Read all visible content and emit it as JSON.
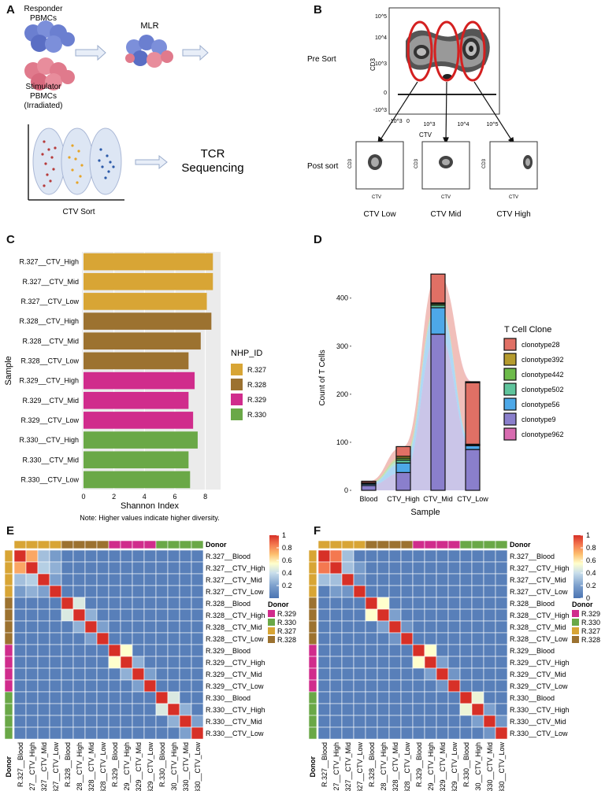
{
  "panels": {
    "a": "A",
    "b": "B",
    "c": "C",
    "d": "D",
    "e": "E",
    "f": "F"
  },
  "panel_a": {
    "responder": [
      "Responder",
      "PBMCs"
    ],
    "stimulator": [
      "Stimulator",
      "PBMCs",
      "(Irradiated)"
    ],
    "mlr": "MLR",
    "tcr": [
      "TCR",
      "Sequencing"
    ],
    "ctv_sort": "CTV Sort"
  },
  "panel_b": {
    "pre_sort": "Pre Sort",
    "post_sort": "Post sort",
    "main_ylabel": "CD3",
    "main_xlabel": "CTV",
    "yticks": [
      "10^5",
      "10^4",
      "10^3",
      "0",
      "-10^3"
    ],
    "xticks": [
      "-10^3",
      "0",
      "10^3",
      "10^4",
      "10^5"
    ],
    "mini_ylabel": "CD3",
    "mini_xlabel": "CTV",
    "captions": [
      "CTV Low",
      "CTV Mid",
      "CTV High"
    ]
  },
  "chart_data": [
    {
      "type": "bar",
      "orientation": "horizontal",
      "categories": [
        "R.327__CTV_High",
        "R.327__CTV_Mid",
        "R.327__CTV_Low",
        "R.328__CTV_High",
        "R.328__CTV_Mid",
        "R.328__CTV_Low",
        "R.329__CTV_High",
        "R.329__CTV_Mid",
        "R.329__CTV_Low",
        "R.330__CTV_High",
        "R.330__CTV_Mid",
        "R.330__CTV_Low"
      ],
      "values": [
        8.5,
        8.5,
        8.1,
        8.4,
        7.7,
        6.9,
        7.3,
        6.9,
        7.2,
        7.5,
        6.9,
        7.0
      ],
      "groups": [
        "R.327",
        "R.327",
        "R.327",
        "R.328",
        "R.328",
        "R.328",
        "R.329",
        "R.329",
        "R.329",
        "R.330",
        "R.330",
        "R.330"
      ],
      "xlabel": "Shannon Index",
      "ylabel": "Sample",
      "xticks": [
        0,
        2,
        4,
        6,
        8
      ],
      "xlim": [
        0,
        8.9
      ],
      "note": "Note: Higher values indicate higher diversity.",
      "legend_title": "NHP_ID",
      "legend": [
        {
          "label": "R.327",
          "color": "#D8A535"
        },
        {
          "label": "R.328",
          "color": "#9C7230"
        },
        {
          "label": "R.329",
          "color": "#D02C8C"
        },
        {
          "label": "R.330",
          "color": "#6AA847"
        }
      ]
    },
    {
      "type": "bar",
      "stacked": true,
      "categories": [
        "Blood",
        "CTV_High",
        "CTV_Mid",
        "CTV_Low"
      ],
      "xlabel": "Sample",
      "ylabel": "Count of T Cells",
      "yticks": [
        0,
        100,
        200,
        300,
        400
      ],
      "ylim": [
        0,
        470
      ],
      "legend_title": "T Cell Clone",
      "series": [
        {
          "name": "clonotype9",
          "color": "#8A7FCC",
          "values": [
            10,
            37,
            325,
            85
          ]
        },
        {
          "name": "clonotype56",
          "color": "#4DA8E8",
          "values": [
            3,
            20,
            55,
            8
          ]
        },
        {
          "name": "clonotype502",
          "color": "#5FC49C",
          "values": [
            1,
            6,
            5,
            1
          ]
        },
        {
          "name": "clonotype442",
          "color": "#6DBB4A",
          "values": [
            1,
            4,
            3,
            1
          ]
        },
        {
          "name": "clonotype392",
          "color": "#B59B2E",
          "values": [
            1,
            4,
            2,
            1
          ]
        },
        {
          "name": "clonotype28",
          "color": "#E07065",
          "values": [
            3,
            20,
            60,
            128
          ]
        },
        {
          "name": "clonotype962",
          "color": "#D86BB0",
          "values": [
            0,
            0,
            0,
            2
          ]
        }
      ],
      "legend_order": [
        "clonotype28",
        "clonotype392",
        "clonotype442",
        "clonotype502",
        "clonotype56",
        "clonotype9",
        "clonotype962"
      ]
    }
  ],
  "heatmaps": {
    "donor_label": "Donor",
    "scale_ticks": [
      "1",
      "0.8",
      "0.6",
      "0.4",
      "0.2",
      "0"
    ],
    "samples": [
      "R.327__Blood",
      "R.327__CTV_High",
      "R.327__CTV_Mid",
      "R.327__CTV_Low",
      "R.328__Blood",
      "R.328__CTV_High",
      "R.328__CTV_Mid",
      "R.328__CTV_Low",
      "R.329__Blood",
      "R.329__CTV_High",
      "R.329__CTV_Mid",
      "R.329__CTV_Low",
      "R.330__Blood",
      "R.330__CTV_High",
      "R.330__CTV_Mid",
      "R.330__CTV_Low"
    ],
    "donor_legend": [
      {
        "label": "R.329",
        "color": "#D02C8C"
      },
      {
        "label": "R.330",
        "color": "#6AA847"
      },
      {
        "label": "R.327",
        "color": "#D8A535"
      },
      {
        "label": "R.328",
        "color": "#9C7230"
      }
    ],
    "e_scale_ticks": [
      "1",
      "0.8",
      "0.6",
      "0.4",
      "0.2"
    ],
    "f_scale_ticks": [
      "1",
      "0.8",
      "0.6",
      "0.4",
      "0.2",
      "0"
    ],
    "e_offdiag": [
      [
        0,
        1,
        0.75
      ],
      [
        0,
        2,
        0.3
      ],
      [
        1,
        2,
        0.35
      ],
      [
        4,
        5,
        0.45
      ],
      [
        8,
        9,
        0.55
      ],
      [
        12,
        13,
        0.45
      ],
      [
        1,
        3,
        0.25
      ],
      [
        5,
        6,
        0.25
      ],
      [
        9,
        10,
        0.25
      ],
      [
        13,
        14,
        0.25
      ],
      [
        2,
        3,
        0.2
      ],
      [
        6,
        7,
        0.2
      ],
      [
        10,
        11,
        0.2
      ],
      [
        14,
        15,
        0.2
      ],
      [
        0,
        3,
        0.18
      ]
    ],
    "f_offdiag": [
      [
        0,
        1,
        0.85
      ],
      [
        0,
        2,
        0.3
      ],
      [
        1,
        2,
        0.3
      ],
      [
        4,
        5,
        0.55
      ],
      [
        8,
        9,
        0.55
      ],
      [
        12,
        13,
        0.5
      ],
      [
        1,
        3,
        0.18
      ],
      [
        5,
        6,
        0.2
      ],
      [
        9,
        10,
        0.2
      ],
      [
        13,
        14,
        0.2
      ],
      [
        2,
        3,
        0.15
      ],
      [
        6,
        7,
        0.15
      ],
      [
        10,
        11,
        0.15
      ],
      [
        14,
        15,
        0.15
      ]
    ]
  }
}
